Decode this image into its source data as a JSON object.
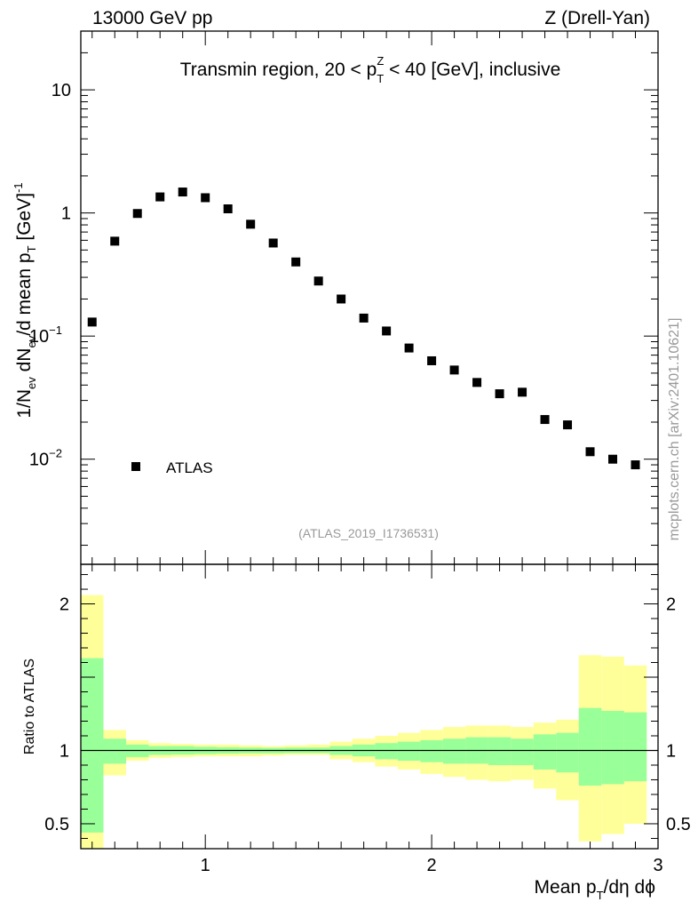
{
  "header": {
    "left": "13000 GeV pp",
    "right": "Z (Drell-Yan)"
  },
  "watermark": "mcplots.cern.ch [arXiv:2401.10621]",
  "chart_data": [
    {
      "type": "scatter",
      "panel": "main",
      "title": "Transmin region, 20 < p_T^Z < 40 [GeV], inclusive",
      "title_parts": {
        "prefix": "Transmin region, 20 < p",
        "sup": "Z",
        "sub": "T",
        "suffix": " < 40 [GeV], inclusive"
      },
      "ylabel": "1/N_ev dN_ev/d mean p_T [GeV]^-1",
      "ylabel_parts": {
        "a": "1/N",
        "a_sub": "ev",
        "b": " dN",
        "b_sub": "ev",
        "c": "/d mean p",
        "c_sub": "T",
        "d": " [GeV]",
        "d_sup": "-1"
      },
      "yscale": "log",
      "ylim": [
        0.0014,
        30
      ],
      "y_ticks": [
        {
          "value": 10,
          "label": "10"
        },
        {
          "value": 1,
          "label": "1"
        },
        {
          "value": 0.1,
          "label": "10",
          "sup": "−1"
        },
        {
          "value": 0.01,
          "label": "10",
          "sup": "−2"
        }
      ],
      "xlim": [
        0.45,
        3.0
      ],
      "legend": {
        "label": "ATLAS",
        "placement": "bottom-left"
      },
      "analysis_id": "(ATLAS_2019_I1736531)",
      "series": [
        {
          "name": "ATLAS",
          "marker": "square",
          "color": "#000000",
          "x": [
            0.5,
            0.6,
            0.7,
            0.8,
            0.9,
            1.0,
            1.1,
            1.2,
            1.3,
            1.4,
            1.5,
            1.6,
            1.7,
            1.8,
            1.9,
            2.0,
            2.1,
            2.2,
            2.3,
            2.4,
            2.5,
            2.6,
            2.7,
            2.8,
            2.9
          ],
          "y": [
            0.13,
            0.59,
            0.99,
            1.35,
            1.48,
            1.33,
            1.08,
            0.81,
            0.57,
            0.4,
            0.28,
            0.2,
            0.14,
            0.11,
            0.08,
            0.063,
            0.053,
            0.042,
            0.034,
            0.035,
            0.021,
            0.019,
            0.0115,
            0.01,
            0.009
          ]
        }
      ]
    },
    {
      "type": "area",
      "panel": "ratio",
      "ylabel": "Ratio to ATLAS",
      "xlabel": "Mean p_T/dη dϕ",
      "xlabel_parts": {
        "a": "Mean p",
        "a_sub": "T",
        "b": "/dη dϕ"
      },
      "xlim": [
        0.45,
        3.0
      ],
      "ylim": [
        0.33,
        2.27
      ],
      "x_ticks": [
        {
          "value": 1,
          "label": "1"
        },
        {
          "value": 2,
          "label": "2"
        },
        {
          "value": 3,
          "label": "3"
        }
      ],
      "y_ticks": [
        {
          "value": 0.5,
          "label": "0.5"
        },
        {
          "value": 1,
          "label": "1"
        },
        {
          "value": 2,
          "label": "2"
        }
      ],
      "reference_line": 1,
      "bin_edges": [
        0.45,
        0.55,
        0.65,
        0.75,
        0.85,
        0.95,
        1.05,
        1.15,
        1.25,
        1.35,
        1.45,
        1.55,
        1.65,
        1.75,
        1.85,
        1.95,
        2.05,
        2.15,
        2.25,
        2.35,
        2.45,
        2.55,
        2.65,
        2.75,
        2.85,
        2.95
      ],
      "bands": [
        {
          "name": "total uncertainty",
          "color": "#ffff99",
          "low": [
            0.0,
            0.83,
            0.93,
            0.95,
            0.955,
            0.96,
            0.96,
            0.96,
            0.965,
            0.97,
            0.97,
            0.94,
            0.92,
            0.89,
            0.87,
            0.84,
            0.82,
            0.8,
            0.79,
            0.8,
            0.74,
            0.66,
            0.38,
            0.43,
            0.5
          ],
          "high": [
            2.06,
            1.14,
            1.07,
            1.05,
            1.045,
            1.04,
            1.04,
            1.035,
            1.03,
            1.035,
            1.04,
            1.06,
            1.08,
            1.1,
            1.12,
            1.14,
            1.16,
            1.17,
            1.17,
            1.16,
            1.19,
            1.21,
            1.65,
            1.64,
            1.58
          ]
        },
        {
          "name": "statistical uncertainty",
          "color": "#99ff99",
          "low": [
            0.44,
            0.91,
            0.955,
            0.97,
            0.972,
            0.975,
            0.978,
            0.98,
            0.98,
            0.982,
            0.982,
            0.97,
            0.96,
            0.94,
            0.93,
            0.92,
            0.91,
            0.91,
            0.9,
            0.9,
            0.87,
            0.85,
            0.76,
            0.77,
            0.79
          ],
          "high": [
            1.63,
            1.08,
            1.04,
            1.03,
            1.03,
            1.025,
            1.022,
            1.02,
            1.018,
            1.02,
            1.02,
            1.03,
            1.04,
            1.05,
            1.06,
            1.07,
            1.08,
            1.09,
            1.09,
            1.08,
            1.11,
            1.12,
            1.29,
            1.27,
            1.26
          ]
        }
      ]
    }
  ]
}
